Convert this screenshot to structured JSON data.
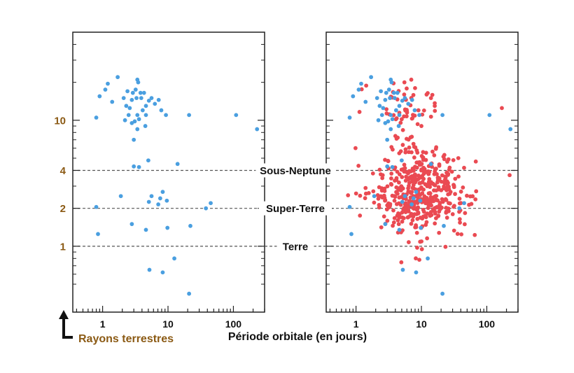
{
  "chart_data": {
    "type": "scatter",
    "xlabel": "Période orbitale (en jours)",
    "ylabel": "Rayons terrestres",
    "x_scale": "log",
    "y_scale": "log",
    "xlim": [
      0.35,
      300
    ],
    "ylim": [
      0.3,
      50
    ],
    "x_ticks": [
      1,
      10,
      100
    ],
    "x_tick_labels": [
      "1",
      "10",
      "100"
    ],
    "y_ticks": [
      1,
      2,
      4,
      10
    ],
    "y_tick_labels": [
      "1",
      "2",
      "4",
      "10"
    ],
    "reference_lines": [
      {
        "label": "Sous-Neptune",
        "y": 4
      },
      {
        "label": "Super-Terre",
        "y": 2
      },
      {
        "label": "Terre",
        "y": 1
      }
    ],
    "colors": {
      "blue": "#4a9fe0",
      "red": "#ea4a52",
      "axis_label": "#8b5a14",
      "dash": "#555555"
    },
    "panels": [
      {
        "name": "left",
        "series": [
          {
            "name": "blue",
            "color": "#4a9fe0",
            "points": [
              [
                1.7,
                22
              ],
              [
                1.2,
                19.5
              ],
              [
                3.4,
                21
              ],
              [
                3.5,
                20
              ],
              [
                0.9,
                15.5
              ],
              [
                1.1,
                17.5
              ],
              [
                2.4,
                17
              ],
              [
                2.9,
                16.5
              ],
              [
                3.2,
                17.5
              ],
              [
                3.8,
                16.5
              ],
              [
                4.3,
                16.5
              ],
              [
                1.4,
                14
              ],
              [
                2.1,
                15
              ],
              [
                2.8,
                14.5
              ],
              [
                3.3,
                15
              ],
              [
                3.9,
                15
              ],
              [
                5.6,
                15
              ],
              [
                5.1,
                14.3
              ],
              [
                4.6,
                13
              ],
              [
                6.3,
                13.5
              ],
              [
                7.2,
                14.5
              ],
              [
                2.6,
                12.5
              ],
              [
                2.3,
                13
              ],
              [
                4.1,
                12
              ],
              [
                7.9,
                12
              ],
              [
                9.3,
                11
              ],
              [
                21,
                11
              ],
              [
                110,
                11
              ],
              [
                2.5,
                11
              ],
              [
                3.4,
                11
              ],
              [
                4.6,
                11
              ],
              [
                0.8,
                10.5
              ],
              [
                2.2,
                10
              ],
              [
                2.8,
                9.5
              ],
              [
                3.6,
                10.2
              ],
              [
                3.1,
                9.8
              ],
              [
                3.4,
                8.5
              ],
              [
                4.5,
                9
              ],
              [
                230,
                8.5
              ],
              [
                3,
                7
              ],
              [
                5,
                4.8
              ],
              [
                14,
                4.5
              ],
              [
                3,
                4.3
              ],
              [
                3.6,
                4.25
              ],
              [
                8.3,
                2.7
              ],
              [
                1.9,
                2.5
              ],
              [
                5.6,
                2.5
              ],
              [
                7.6,
                2.4
              ],
              [
                5.1,
                2.25
              ],
              [
                9.6,
                2.3
              ],
              [
                7.1,
                2.15
              ],
              [
                45,
                2.2
              ],
              [
                0.8,
                2.05
              ],
              [
                38,
                2
              ],
              [
                2.8,
                1.5
              ],
              [
                9.8,
                1.4
              ],
              [
                22,
                1.45
              ],
              [
                4.6,
                1.35
              ],
              [
                0.85,
                1.25
              ],
              [
                12.5,
                0.8
              ],
              [
                5.2,
                0.65
              ],
              [
                8.3,
                0.62
              ],
              [
                21,
                0.42
              ]
            ]
          }
        ]
      },
      {
        "name": "right",
        "series": [
          {
            "name": "blue",
            "color": "#4a9fe0",
            "points": [
              [
                1.7,
                22
              ],
              [
                1.2,
                19.5
              ],
              [
                3.4,
                21
              ],
              [
                3.5,
                20
              ],
              [
                0.9,
                15.5
              ],
              [
                1.1,
                17.5
              ],
              [
                2.4,
                17
              ],
              [
                2.9,
                16.5
              ],
              [
                3.2,
                17.5
              ],
              [
                3.8,
                16.5
              ],
              [
                4.3,
                16.5
              ],
              [
                1.4,
                14
              ],
              [
                2.1,
                15
              ],
              [
                2.8,
                14.5
              ],
              [
                3.3,
                15
              ],
              [
                3.9,
                15
              ],
              [
                5.6,
                15
              ],
              [
                5.1,
                14.3
              ],
              [
                4.6,
                13
              ],
              [
                6.3,
                13.5
              ],
              [
                7.2,
                14.5
              ],
              [
                2.6,
                12.5
              ],
              [
                2.3,
                13
              ],
              [
                4.1,
                12
              ],
              [
                7.9,
                12
              ],
              [
                9.3,
                11
              ],
              [
                21,
                11
              ],
              [
                110,
                11
              ],
              [
                2.5,
                11
              ],
              [
                3.4,
                11
              ],
              [
                4.6,
                11
              ],
              [
                0.8,
                10.5
              ],
              [
                2.2,
                10
              ],
              [
                2.8,
                9.5
              ],
              [
                3.6,
                10.2
              ],
              [
                3.1,
                9.8
              ],
              [
                3.4,
                8.5
              ],
              [
                4.5,
                9
              ],
              [
                230,
                8.5
              ],
              [
                3,
                7
              ],
              [
                5,
                4.8
              ],
              [
                14,
                4.5
              ],
              [
                3,
                4.3
              ],
              [
                3.6,
                4.25
              ],
              [
                8.3,
                2.7
              ],
              [
                1.9,
                2.5
              ],
              [
                5.6,
                2.5
              ],
              [
                7.6,
                2.4
              ],
              [
                5.1,
                2.25
              ],
              [
                9.6,
                2.3
              ],
              [
                7.1,
                2.15
              ],
              [
                45,
                2.2
              ],
              [
                0.8,
                2.05
              ],
              [
                38,
                2
              ],
              [
                2.8,
                1.5
              ],
              [
                9.8,
                1.4
              ],
              [
                22,
                1.45
              ],
              [
                4.6,
                1.35
              ],
              [
                0.85,
                1.25
              ],
              [
                12.5,
                0.8
              ],
              [
                5.2,
                0.65
              ],
              [
                8.3,
                0.62
              ],
              [
                21,
                0.42
              ]
            ]
          },
          {
            "name": "red",
            "color": "#ea4a52",
            "count": 520,
            "seed": 20240,
            "clusters": [
              {
                "weight": 0.84,
                "logx_mean": 1.0,
                "logx_sd": 0.34,
                "logy_mean": 0.43,
                "logy_sd": 0.18,
                "logy_min": -0.45,
                "logy_max": 0.78
              },
              {
                "weight": 0.11,
                "logx_mean": 0.72,
                "logx_sd": 0.26,
                "logy_mean": 1.07,
                "logy_sd": 0.11,
                "logy_min": 0.82,
                "logy_max": 1.36
              },
              {
                "weight": 0.05,
                "logx_mean": 0.78,
                "logx_sd": 0.13,
                "logy_mean": 0.8,
                "logy_sd": 0.05,
                "logy_min": 0.7,
                "logy_max": 0.9
              }
            ],
            "points": [
              [
                7,
                21
              ],
              [
                12,
                16
              ],
              [
                5.5,
                20
              ],
              [
                8,
                18
              ],
              [
                14,
                15
              ],
              [
                16,
                13
              ],
              [
                9,
                12
              ],
              [
                170,
                12.5
              ],
              [
                6,
                11.8
              ],
              [
                5,
                10.2
              ],
              [
                10,
                9
              ],
              [
                4,
                7.5
              ]
            ]
          }
        ]
      }
    ]
  }
}
